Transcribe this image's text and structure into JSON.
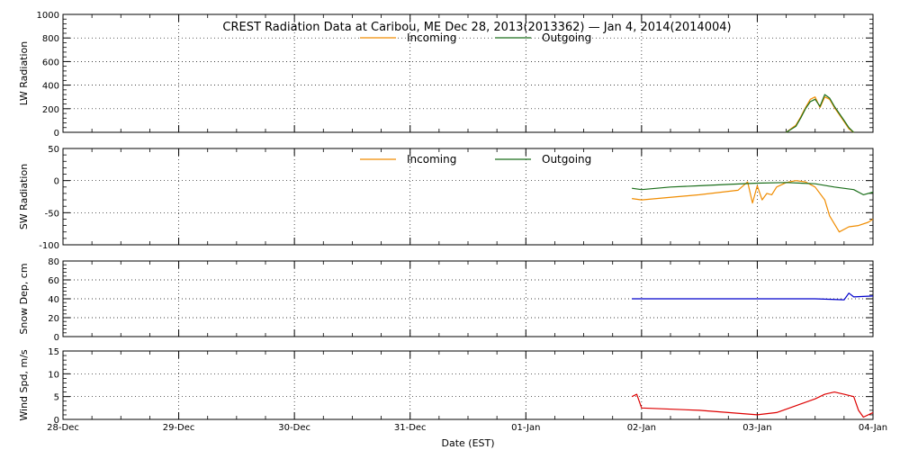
{
  "chart_data": [
    {
      "type": "line",
      "title": "CREST Radiation Data at Caribou, ME   Dec 28, 2013(2013362) — Jan  4, 2014(2014004)",
      "ylabel": "LW Radiation",
      "xlabel": "",
      "ylim": [
        0,
        1000
      ],
      "y_ticks": [
        0,
        200,
        400,
        600,
        800,
        1000
      ],
      "x_domain": [
        "2013-12-28",
        "2014-01-04"
      ],
      "grid": true,
      "legend": "top-center",
      "series": [
        {
          "name": "Incoming",
          "color": "#f08c00",
          "x": [
            "2014-01-03 06:00",
            "2014-01-03 08:00",
            "2014-01-03 09:00",
            "2014-01-03 10:00",
            "2014-01-03 11:00",
            "2014-01-03 12:00",
            "2014-01-03 13:00",
            "2014-01-03 14:00",
            "2014-01-03 15:00",
            "2014-01-03 16:00",
            "2014-01-03 17:00",
            "2014-01-03 18:00",
            "2014-01-03 19:00",
            "2014-01-03 20:00"
          ],
          "y": [
            0,
            60,
            130,
            210,
            280,
            300,
            210,
            300,
            280,
            210,
            150,
            90,
            30,
            0
          ]
        },
        {
          "name": "Outgoing",
          "color": "#1a6e1a",
          "x": [
            "2014-01-03 06:00",
            "2014-01-03 08:00",
            "2014-01-03 09:00",
            "2014-01-03 10:00",
            "2014-01-03 11:00",
            "2014-01-03 12:00",
            "2014-01-03 13:00",
            "2014-01-03 14:00",
            "2014-01-03 15:00",
            "2014-01-03 16:00",
            "2014-01-03 17:00",
            "2014-01-03 18:00",
            "2014-01-03 19:00",
            "2014-01-03 20:00"
          ],
          "y": [
            0,
            50,
            120,
            200,
            260,
            280,
            220,
            320,
            290,
            220,
            160,
            100,
            40,
            0
          ]
        }
      ]
    },
    {
      "type": "line",
      "ylabel": "SW Radiation",
      "xlabel": "",
      "ylim": [
        -100,
        50
      ],
      "y_ticks": [
        -100,
        -50,
        0,
        50
      ],
      "x_domain": [
        "2013-12-28",
        "2014-01-04"
      ],
      "grid": true,
      "legend": "top-center",
      "series": [
        {
          "name": "Incoming",
          "color": "#f08c00",
          "x": [
            "2014-01-01 22:00",
            "2014-01-02 00:00",
            "2014-01-02 12:00",
            "2014-01-02 20:00",
            "2014-01-02 22:00",
            "2014-01-02 23:00",
            "2014-01-03 00:00",
            "2014-01-03 01:00",
            "2014-01-03 02:00",
            "2014-01-03 03:00",
            "2014-01-03 04:00",
            "2014-01-03 06:00",
            "2014-01-03 08:00",
            "2014-01-03 10:00",
            "2014-01-03 12:00",
            "2014-01-03 14:00",
            "2014-01-03 15:00",
            "2014-01-03 17:00",
            "2014-01-03 19:00",
            "2014-01-03 21:00",
            "2014-01-03 23:00",
            "2014-01-04 00:00"
          ],
          "y": [
            -28,
            -30,
            -22,
            -15,
            -2,
            -35,
            -8,
            -30,
            -20,
            -22,
            -10,
            -3,
            0,
            -2,
            -10,
            -30,
            -55,
            -80,
            -72,
            -70,
            -65,
            -60
          ]
        },
        {
          "name": "Outgoing",
          "color": "#1a6e1a",
          "x": [
            "2014-01-01 22:00",
            "2014-01-02 00:00",
            "2014-01-02 06:00",
            "2014-01-02 12:00",
            "2014-01-02 18:00",
            "2014-01-03 00:00",
            "2014-01-03 06:00",
            "2014-01-03 12:00",
            "2014-01-03 16:00",
            "2014-01-03 20:00",
            "2014-01-03 22:00",
            "2014-01-04 00:00"
          ],
          "y": [
            -12,
            -14,
            -10,
            -8,
            -6,
            -4,
            -3,
            -5,
            -10,
            -14,
            -22,
            -18
          ]
        }
      ]
    },
    {
      "type": "line",
      "ylabel": "Snow Dep, cm",
      "xlabel": "",
      "ylim": [
        0,
        80
      ],
      "y_ticks": [
        0,
        20,
        40,
        60,
        80
      ],
      "x_domain": [
        "2013-12-28",
        "2014-01-04"
      ],
      "grid": true,
      "series": [
        {
          "color": "#0000cc",
          "x": [
            "2014-01-01 22:00",
            "2014-01-02 12:00",
            "2014-01-03 00:00",
            "2014-01-03 12:00",
            "2014-01-03 18:00",
            "2014-01-03 19:00",
            "2014-01-03 20:00",
            "2014-01-04 00:00"
          ],
          "y": [
            40,
            40,
            40,
            40,
            39,
            46,
            42,
            43
          ]
        }
      ]
    },
    {
      "type": "line",
      "ylabel": "Wind Spd, m/s",
      "xlabel": "Date (EST)",
      "ylim": [
        0,
        15
      ],
      "y_ticks": [
        0,
        5,
        10,
        15
      ],
      "x_domain": [
        "2013-12-28",
        "2014-01-04"
      ],
      "x_tick_labels": [
        "28-Dec",
        "29-Dec",
        "30-Dec",
        "31-Dec",
        "01-Jan",
        "02-Jan",
        "03-Jan",
        "04-Jan"
      ],
      "grid": true,
      "series": [
        {
          "color": "#dd0000",
          "x": [
            "2014-01-01 22:00",
            "2014-01-01 23:00",
            "2014-01-02 00:00",
            "2014-01-02 12:00",
            "2014-01-03 00:00",
            "2014-01-03 04:00",
            "2014-01-03 08:00",
            "2014-01-03 12:00",
            "2014-01-03 14:00",
            "2014-01-03 16:00",
            "2014-01-03 18:00",
            "2014-01-03 20:00",
            "2014-01-03 21:00",
            "2014-01-03 22:00",
            "2014-01-04 00:00"
          ],
          "y": [
            5,
            5.5,
            2.5,
            2,
            1,
            1.5,
            3,
            4.5,
            5.5,
            6,
            5.5,
            5,
            2,
            0.5,
            1.5
          ]
        }
      ]
    }
  ]
}
